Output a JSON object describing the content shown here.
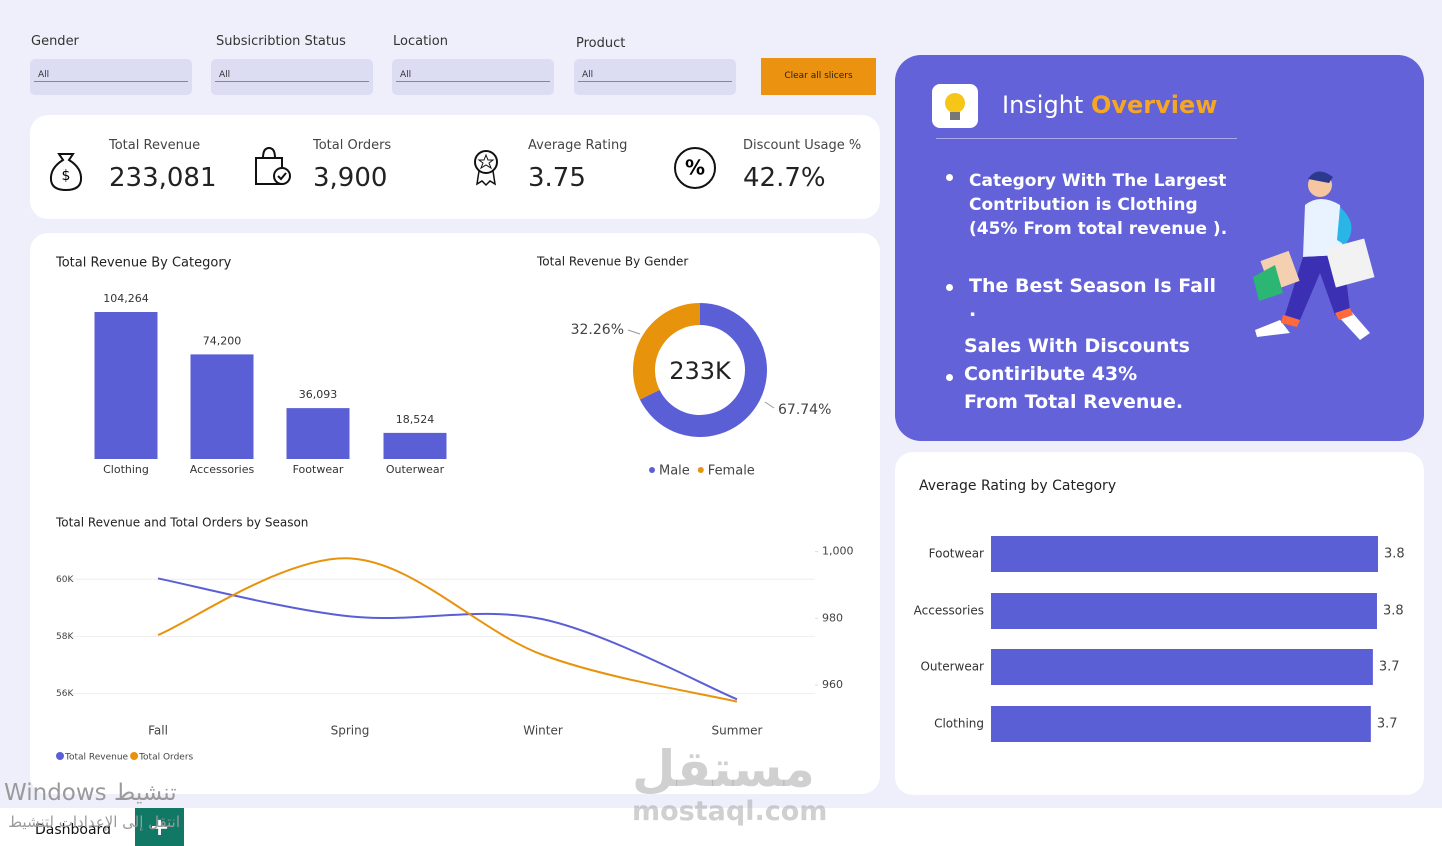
{
  "slicers": [
    {
      "label": "Gender",
      "value": "All"
    },
    {
      "label": "Subsicribtion Status",
      "value": "All"
    },
    {
      "label": "Location",
      "value": "All"
    },
    {
      "label": "Product",
      "value": "All"
    }
  ],
  "clear_button": "Clear all slicers",
  "kpis": [
    {
      "label": "Total Revenue",
      "value": "233,081"
    },
    {
      "label": "Total Orders",
      "value": "3,900"
    },
    {
      "label": "Average Rating",
      "value": "3.75"
    },
    {
      "label": "Discount Usage %",
      "value": "42.7%"
    }
  ],
  "insight": {
    "title": "Insight",
    "highlight": "Overview",
    "bullets": [
      "Category With The Largest Contribution is Clothing (45% From total revenue ).",
      "The Best Season Is Fall .",
      "Sales With Discounts Contiribute 43% From Total Revenue."
    ]
  },
  "tab": "Dashboard",
  "watermarks": [
    "Windows تنشيط",
    "انتقل إلى الإعدادات لتنشيط",
    "مستقل",
    "mostaql.com"
  ],
  "chart_data": [
    {
      "type": "bar",
      "title": "Total Revenue By Category",
      "categories": [
        "Clothing",
        "Accessories",
        "Footwear",
        "Outerwear"
      ],
      "values": [
        104264,
        74200,
        36093,
        18524
      ],
      "value_labels": [
        "104,264",
        "74,200",
        "36,093",
        "18,524"
      ],
      "color": "#5b5fd6"
    },
    {
      "type": "pie",
      "title": "Total Revenue By Gender",
      "center_label": "233K",
      "categories": [
        "Male",
        "Female"
      ],
      "values": [
        67.74,
        32.26
      ],
      "value_labels": [
        "67.74%",
        "32.26%"
      ],
      "colors": [
        "#5b5fd6",
        "#e8930c"
      ]
    },
    {
      "type": "line",
      "title": "Total Revenue and Total Orders by Season",
      "categories": [
        "Fall",
        "Spring",
        "Winter",
        "Summer"
      ],
      "series": [
        {
          "name": "Total Revenue",
          "color": "#5b5fd6",
          "values": [
            60030,
            58700,
            58600,
            55800
          ]
        },
        {
          "name": "Total Orders",
          "color": "#e8930c",
          "axis": "y2",
          "values": [
            975,
            998,
            969,
            955
          ]
        }
      ],
      "ylim": [
        55600,
        61200
      ],
      "yticks": [
        {
          "value": 56000,
          "label": "56K"
        },
        {
          "value": 58000,
          "label": "58K"
        },
        {
          "value": 60000,
          "label": "60K"
        }
      ],
      "y2lim": [
        954,
        1002
      ],
      "y2ticks": [
        960,
        980,
        {
          "value": 1000,
          "label": "1,000"
        }
      ],
      "grid": true
    },
    {
      "type": "hbar",
      "title": "Average Rating by Category",
      "categories": [
        "Footwear",
        "Accessories",
        "Outerwear",
        "Clothing"
      ],
      "values": [
        3.79,
        3.78,
        3.74,
        3.72
      ],
      "value_labels": [
        "3.8",
        "3.8",
        "3.7",
        "3.7"
      ],
      "color": "#5b5fd6"
    }
  ]
}
